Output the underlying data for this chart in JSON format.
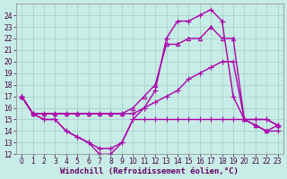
{
  "xlabel": "Windchill (Refroidissement éolien,°C)",
  "bg_color": "#c8ece6",
  "grid_color": "#a0d0c8",
  "line_color": "#aa00aa",
  "xlim": [
    -0.5,
    23.5
  ],
  "ylim": [
    12,
    25
  ],
  "xticks": [
    0,
    1,
    2,
    3,
    4,
    5,
    6,
    7,
    8,
    9,
    10,
    11,
    12,
    13,
    14,
    15,
    16,
    17,
    18,
    19,
    20,
    21,
    22,
    23
  ],
  "yticks": [
    12,
    13,
    14,
    15,
    16,
    17,
    18,
    19,
    20,
    21,
    22,
    23,
    24
  ],
  "series": [
    {
      "x": [
        0,
        1,
        2,
        3,
        4,
        5,
        6,
        7,
        8,
        9,
        10,
        11,
        12,
        13,
        14,
        15,
        16,
        17,
        18,
        19,
        20,
        21,
        22,
        23
      ],
      "y": [
        17,
        15.5,
        15,
        15,
        14,
        13.5,
        13,
        12,
        12,
        13,
        15,
        15,
        15,
        15,
        15,
        15,
        15,
        15,
        15,
        15,
        15,
        15,
        15,
        14.5
      ],
      "marker": "+",
      "markersize": 4,
      "linewidth": 1.0
    },
    {
      "x": [
        0,
        1,
        2,
        3,
        4,
        5,
        6,
        7,
        8,
        9,
        10,
        11,
        12,
        13,
        14,
        15,
        16,
        17,
        18,
        19,
        20,
        21,
        22,
        23
      ],
      "y": [
        17,
        15.5,
        15,
        15,
        14,
        13.5,
        13,
        12.5,
        12.5,
        13,
        15,
        16,
        16.5,
        17,
        17.5,
        18.5,
        19,
        19.5,
        20,
        20,
        15,
        14.5,
        14,
        14
      ],
      "marker": "+",
      "markersize": 4,
      "linewidth": 1.0
    },
    {
      "x": [
        0,
        1,
        2,
        3,
        4,
        5,
        6,
        7,
        8,
        9,
        10,
        11,
        12,
        13,
        14,
        15,
        16,
        17,
        18,
        19,
        20,
        21,
        22,
        23
      ],
      "y": [
        17,
        15.5,
        15.5,
        15.5,
        15.5,
        15.5,
        15.5,
        15.5,
        15.5,
        15.5,
        16,
        17,
        18,
        21.5,
        21.5,
        22,
        22,
        23,
        22,
        22,
        15,
        14.5,
        14,
        14.5
      ],
      "marker": "^",
      "markersize": 3,
      "linewidth": 1.0
    },
    {
      "x": [
        0,
        1,
        2,
        3,
        4,
        5,
        6,
        7,
        8,
        9,
        10,
        11,
        12,
        13,
        14,
        15,
        16,
        17,
        18,
        19,
        20,
        21,
        22,
        23
      ],
      "y": [
        17,
        15.5,
        15.5,
        15.5,
        15.5,
        15.5,
        15.5,
        15.5,
        15.5,
        15.5,
        15.5,
        16,
        17.5,
        22,
        23.5,
        23.5,
        24,
        24.5,
        23.5,
        17,
        15,
        15,
        15,
        14.5
      ],
      "marker": "+",
      "markersize": 4,
      "linewidth": 1.0
    }
  ],
  "tick_fontsize": 5.5,
  "xlabel_fontsize": 6.5,
  "xlabel_color": "#660066"
}
